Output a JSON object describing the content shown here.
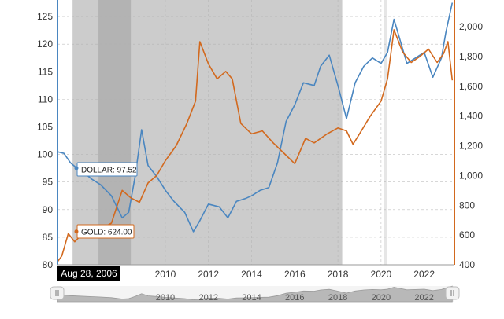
{
  "chart_data": {
    "type": "line",
    "title": "",
    "xlabel": "",
    "ylabel_left": "",
    "ylabel_right": "",
    "x_range": [
      2005.0,
      2023.4
    ],
    "left_axis": {
      "min": 80,
      "max": 128,
      "ticks": [
        80,
        85,
        90,
        95,
        100,
        105,
        110,
        115,
        120,
        125
      ]
    },
    "right_axis": {
      "min": 400,
      "max": 2180,
      "ticks": [
        400,
        600,
        800,
        1000,
        1200,
        1400,
        1600,
        1800,
        2000
      ],
      "tick_labels": [
        "400",
        "600",
        "800",
        "1,000",
        "1,200",
        "1,400",
        "1,600",
        "1,800",
        "2,000"
      ]
    },
    "x_ticks": [
      "2010",
      "2012",
      "2014",
      "2016",
      "2018",
      "2020",
      "2022"
    ],
    "grid": true,
    "recession_shading": [
      [
        2005.7,
        2018.2
      ]
    ],
    "highlight_shading": [
      [
        2006.9,
        2008.4
      ]
    ],
    "cursor_date": "Aug 28, 2006",
    "tooltips": [
      {
        "series": "DOLLAR",
        "text": "DOLLAR: 97.52"
      },
      {
        "series": "GOLD",
        "text": "GOLD: 624.00"
      }
    ],
    "series": [
      {
        "name": "DOLLAR",
        "axis": "left",
        "color": "#4a86c0",
        "x": [
          2005.0,
          2005.3,
          2005.6,
          2005.9,
          2006.2,
          2006.6,
          2007.0,
          2007.5,
          2008.0,
          2008.3,
          2008.6,
          2008.9,
          2009.2,
          2009.6,
          2010.0,
          2010.4,
          2010.9,
          2011.3,
          2011.6,
          2012.0,
          2012.5,
          2012.9,
          2013.3,
          2013.7,
          2014.0,
          2014.4,
          2014.8,
          2015.2,
          2015.6,
          2016.0,
          2016.4,
          2016.9,
          2017.2,
          2017.6,
          2018.0,
          2018.4,
          2018.8,
          2019.2,
          2019.6,
          2020.0,
          2020.3,
          2020.6,
          2020.9,
          2021.2,
          2021.6,
          2022.0,
          2022.4,
          2022.8,
          2023.0,
          2023.3
        ],
        "y": [
          100.5,
          100.2,
          98.5,
          97.5,
          96.8,
          95.5,
          94.5,
          92.5,
          88.5,
          89.5,
          96.0,
          104.5,
          98.0,
          96.0,
          93.5,
          91.5,
          89.5,
          86.0,
          88.0,
          91.0,
          90.5,
          88.5,
          91.5,
          92.0,
          92.5,
          93.5,
          94.0,
          98.5,
          106.0,
          109.0,
          113.0,
          112.5,
          116.0,
          118.0,
          112.5,
          106.5,
          113.0,
          116.0,
          117.5,
          116.5,
          118.5,
          124.5,
          120.5,
          116.5,
          117.5,
          118.5,
          114.0,
          117.5,
          122.0,
          127.5
        ]
      },
      {
        "name": "GOLD",
        "axis": "right",
        "color": "#d2691e",
        "x": [
          2005.0,
          2005.2,
          2005.5,
          2005.8,
          2006.1,
          2006.5,
          2007.0,
          2007.5,
          2008.0,
          2008.4,
          2008.8,
          2009.2,
          2009.6,
          2010.0,
          2010.5,
          2011.0,
          2011.4,
          2011.6,
          2012.0,
          2012.4,
          2012.8,
          2013.1,
          2013.5,
          2014.0,
          2014.5,
          2015.0,
          2015.5,
          2016.0,
          2016.5,
          2016.9,
          2017.5,
          2018.0,
          2018.4,
          2018.7,
          2019.0,
          2019.5,
          2020.0,
          2020.3,
          2020.6,
          2021.0,
          2021.4,
          2021.8,
          2022.2,
          2022.6,
          2022.9,
          2023.1,
          2023.3
        ],
        "y": [
          420,
          460,
          610,
          555,
          600,
          620,
          640,
          680,
          900,
          850,
          820,
          950,
          1000,
          1100,
          1200,
          1350,
          1500,
          1900,
          1750,
          1650,
          1700,
          1650,
          1350,
          1280,
          1300,
          1220,
          1150,
          1080,
          1250,
          1220,
          1280,
          1320,
          1300,
          1210,
          1280,
          1400,
          1500,
          1650,
          1980,
          1830,
          1760,
          1800,
          1850,
          1760,
          1820,
          1900,
          1640
        ]
      }
    ]
  }
}
